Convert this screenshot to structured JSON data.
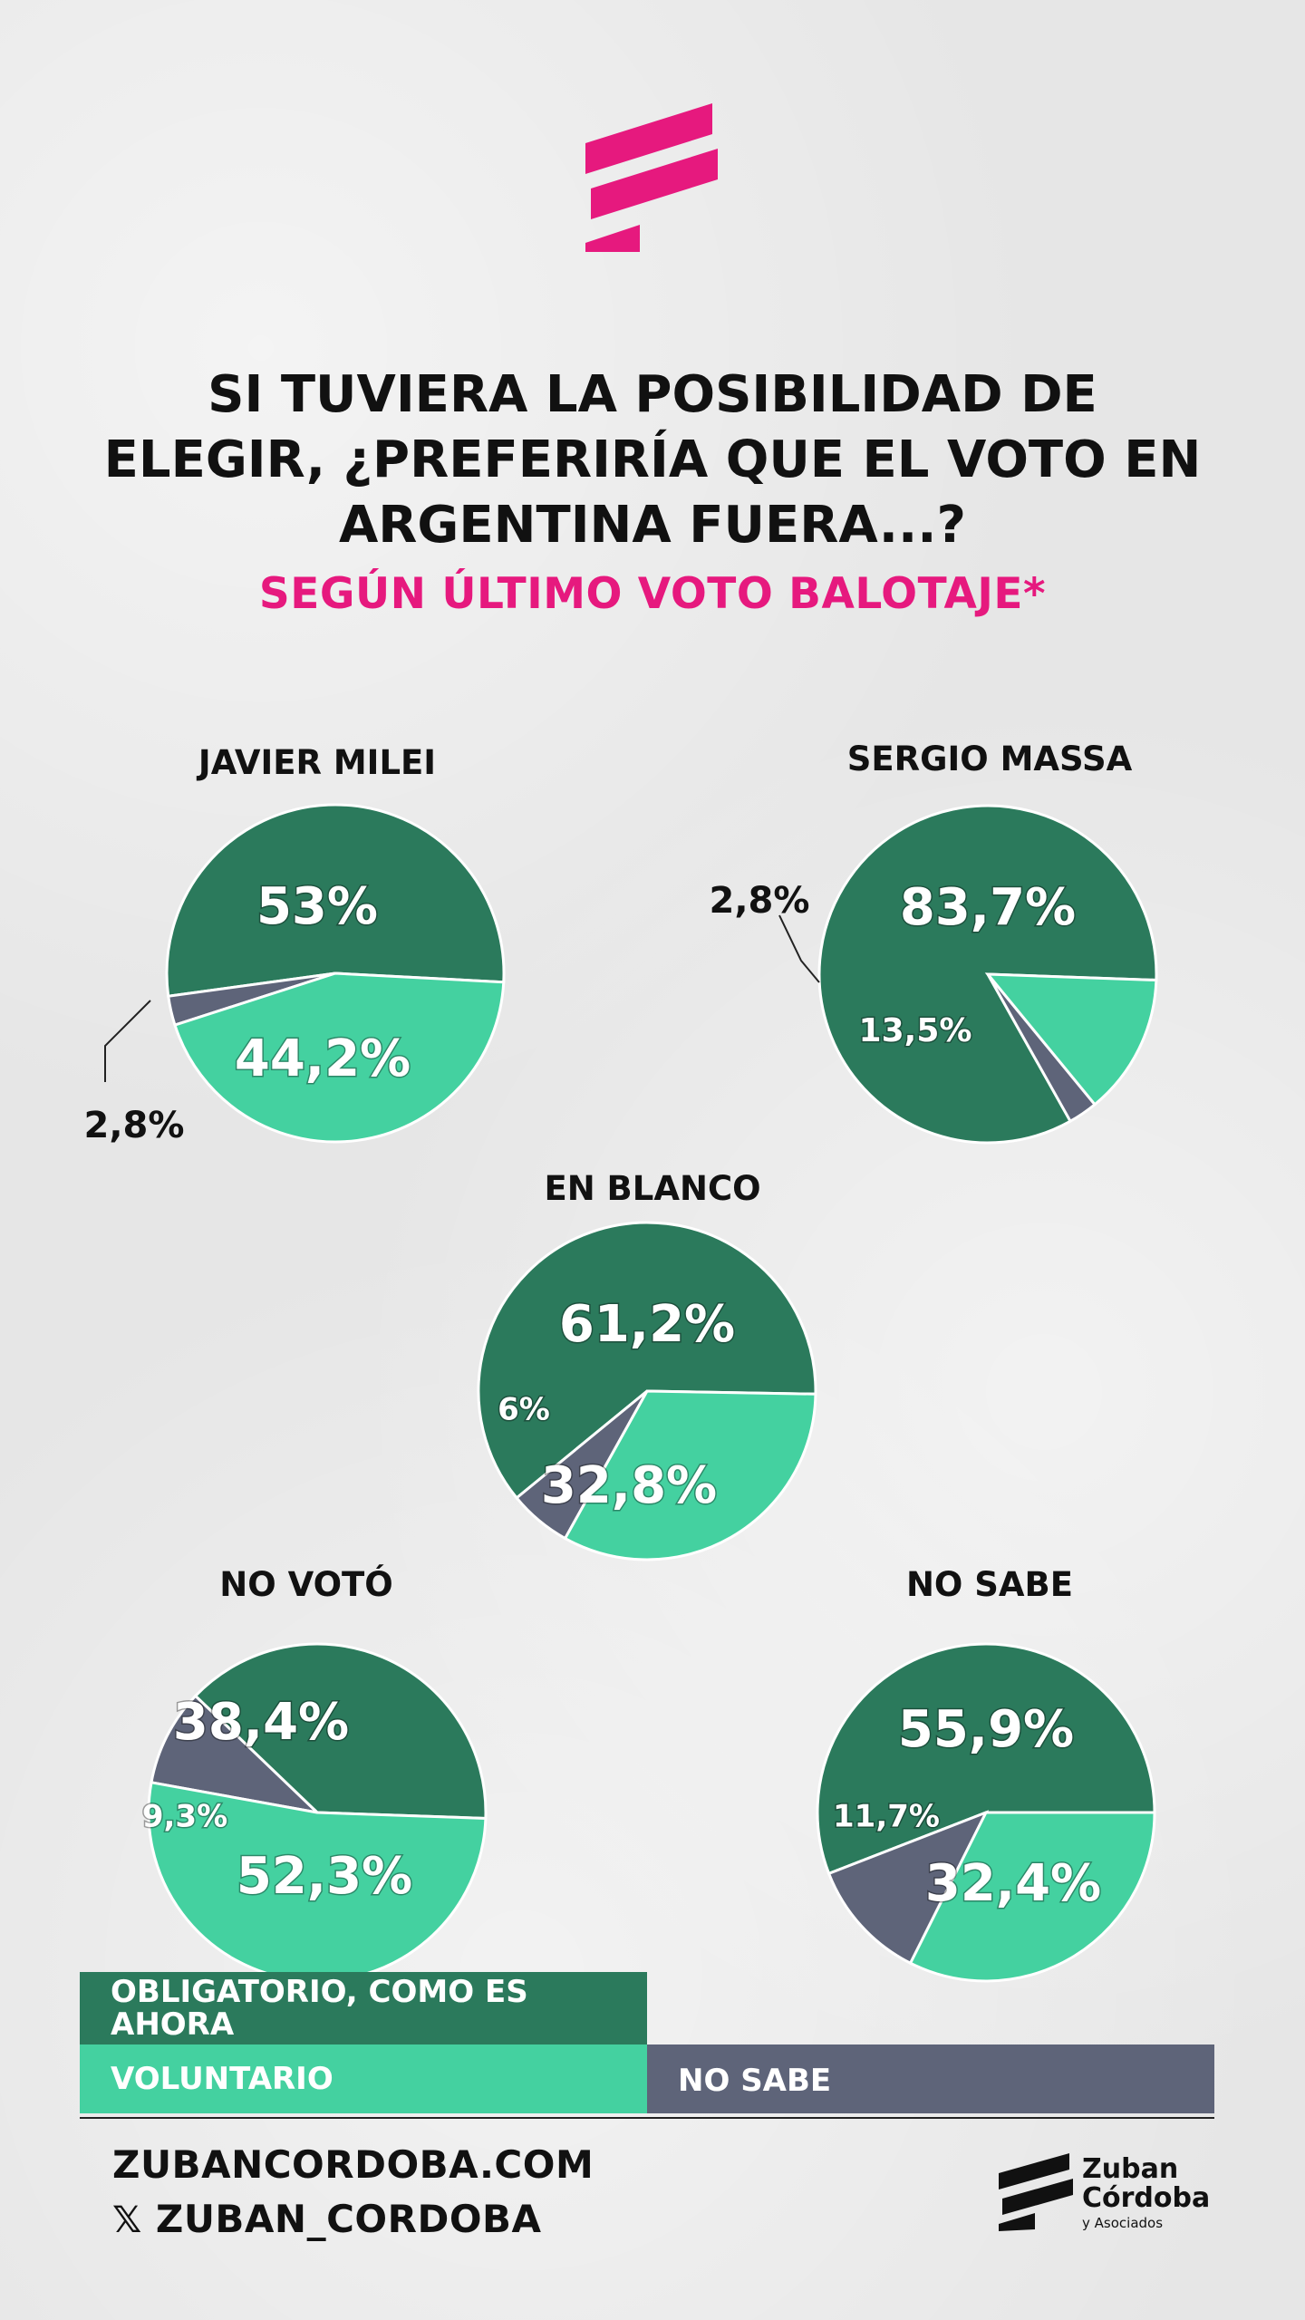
{
  "title_lines": [
    "SI TUVIERA LA POSIBILIDAD DE",
    "ELEGIR, ¿PREFERIRÍA QUE EL VOTO EN",
    "ARGENTINA FUERA...?"
  ],
  "subtitle": "SEGÚN ÚLTIMO VOTO BALOTAJE*",
  "colors": {
    "obligatorio": "#2b7a5c",
    "voluntario": "#44d1a0",
    "no_sabe": "#5e6479",
    "accent": "#e6197e"
  },
  "chart_data": [
    {
      "type": "pie",
      "title": "JAVIER MILEI",
      "categories": [
        "OBLIGATORIO, COMO ES AHORA",
        "VOLUNTARIO",
        "NO SABE"
      ],
      "values": [
        53,
        44.2,
        2.8
      ],
      "labels": [
        "53%",
        "44,2%",
        "2,8%"
      ]
    },
    {
      "type": "pie",
      "title": "SERGIO MASSA",
      "categories": [
        "OBLIGATORIO, COMO ES AHORA",
        "VOLUNTARIO",
        "NO SABE"
      ],
      "values": [
        83.7,
        13.5,
        2.8
      ],
      "labels": [
        "83,7%",
        "13,5%",
        "2,8%"
      ]
    },
    {
      "type": "pie",
      "title": "EN BLANCO",
      "categories": [
        "OBLIGATORIO, COMO ES AHORA",
        "VOLUNTARIO",
        "NO SABE"
      ],
      "values": [
        61.2,
        32.8,
        6
      ],
      "labels": [
        "61,2%",
        "32,8%",
        "6%"
      ]
    },
    {
      "type": "pie",
      "title": "NO VOTÓ",
      "categories": [
        "OBLIGATORIO, COMO ES AHORA",
        "VOLUNTARIO",
        "NO SABE"
      ],
      "values": [
        38.4,
        52.3,
        9.3
      ],
      "labels": [
        "38,4%",
        "52,3%",
        "9,3%"
      ]
    },
    {
      "type": "pie",
      "title": "NO SABE",
      "categories": [
        "OBLIGATORIO, COMO ES AHORA",
        "VOLUNTARIO",
        "NO SABE"
      ],
      "values": [
        55.9,
        32.4,
        11.7
      ],
      "labels": [
        "55,9%",
        "32,4%",
        "11,7%"
      ]
    }
  ],
  "legend": {
    "obligatorio": "OBLIGATORIO, COMO ES AHORA",
    "voluntario": "VOLUNTARIO",
    "no_sabe": "NO SABE"
  },
  "footer": {
    "website": "ZUBANCORDOBA.COM",
    "social": "ZUBAN_CORDOBA",
    "social_icon": "x-icon"
  },
  "brand": {
    "line1": "Zuban",
    "line2": "Córdoba",
    "line3": "y Asociados"
  }
}
